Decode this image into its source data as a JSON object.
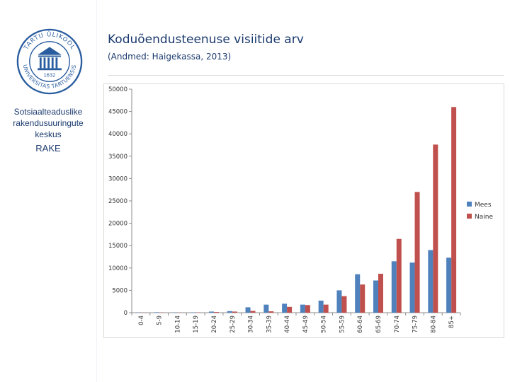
{
  "sidebar": {
    "logo_text": "TARTU ÜLIKOOL · UNIVERSITAS TARTUENSIS",
    "logo_year": "1632",
    "org_name_line1": "Sotsiaalteaduslike",
    "org_name_line2": "rakendusuuringute",
    "org_name_line3": "keskus",
    "org_abbr": "RAKE"
  },
  "header": {
    "title": "Koduõendusteenuse visiitide arv",
    "subtitle": "(Andmed: Haigekassa, 2013)"
  },
  "colors": {
    "mees": "#4f81bd",
    "naine": "#c0504d",
    "brand": "#1b3a6e"
  },
  "chart_data": {
    "type": "bar",
    "title": "Koduõendusteenuse visiitide arv",
    "subtitle": "(Andmed: Haigekassa, 2013)",
    "xlabel": "",
    "ylabel": "",
    "ylim": [
      0,
      50000
    ],
    "yticks": [
      0,
      5000,
      10000,
      15000,
      20000,
      25000,
      30000,
      35000,
      40000,
      45000,
      50000
    ],
    "legend_position": "right",
    "categories": [
      "0-4",
      "5-9",
      "10-14",
      "15-19",
      "20-24",
      "25-29",
      "30-34",
      "35-39",
      "40-44",
      "45-49",
      "50-54",
      "55-59",
      "60-64",
      "65-69",
      "70-74",
      "75-79",
      "80-84",
      "85+"
    ],
    "series": [
      {
        "name": "Mees",
        "values": [
          50,
          100,
          50,
          80,
          250,
          350,
          1200,
          1800,
          2000,
          1800,
          2700,
          5000,
          8600,
          7200,
          11500,
          11200,
          14000,
          12300
        ]
      },
      {
        "name": "Naine",
        "values": [
          30,
          50,
          30,
          60,
          150,
          250,
          400,
          300,
          1300,
          1700,
          1800,
          3700,
          6300,
          8700,
          16500,
          27000,
          37600,
          46000
        ]
      }
    ]
  }
}
